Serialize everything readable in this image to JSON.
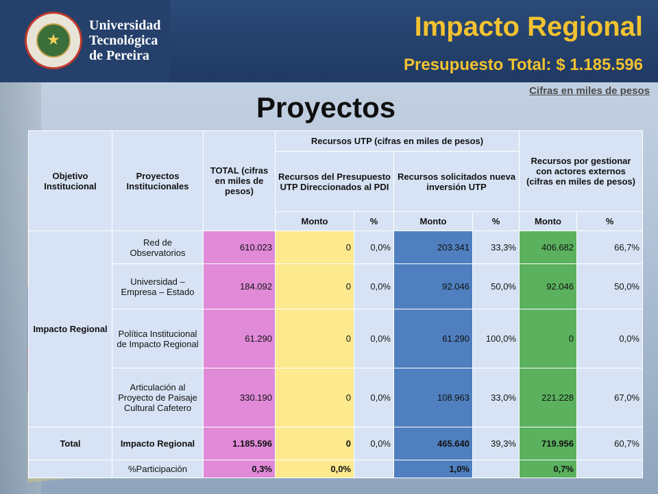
{
  "header": {
    "university_lines": [
      "Universidad",
      "Tecnológica",
      "de Pereira"
    ],
    "title": "Impacto Regional",
    "subtitle": "Presupuesto Total: $ 1.185.596",
    "note": "Cifras en miles de pesos"
  },
  "heading": "Proyectos",
  "table": {
    "headers": {
      "objetivo": "Objetivo Institucional",
      "proyectos": "Proyectos Institucionales",
      "total": "TOTAL (cifras en miles de pesos)",
      "recursos_utp": "Recursos UTP (cifras en miles de pesos)",
      "presupuesto_pdi": "Recursos del Presupuesto UTP Direccionados al PDI",
      "nueva_inversion": "Recursos solicitados nueva inversión UTP",
      "externos": "Recursos por gestionar con actores externos (cifras en miles de pesos)",
      "monto": "Monto",
      "pct": "%"
    },
    "objetivo_value": "Impacto Regional",
    "rows": [
      {
        "proyecto": "Red de Observatorios",
        "total": "610.023",
        "pdi_monto": "0",
        "pdi_pct": "0,0%",
        "nueva_monto": "203.341",
        "nueva_pct": "33,3%",
        "ext_monto": "406.682",
        "ext_pct": "66,7%"
      },
      {
        "proyecto": "Universidad – Empresa – Estado",
        "total": "184.092",
        "pdi_monto": "0",
        "pdi_pct": "0,0%",
        "nueva_monto": "92.046",
        "nueva_pct": "50,0%",
        "ext_monto": "92.046",
        "ext_pct": "50,0%"
      },
      {
        "proyecto": "Política Institucional de Impacto Regional",
        "total": "61.290",
        "pdi_monto": "0",
        "pdi_pct": "0,0%",
        "nueva_monto": "61.290",
        "nueva_pct": "100,0%",
        "ext_monto": "0",
        "ext_pct": "0,0%"
      },
      {
        "proyecto": "Articulación al Proyecto de Paisaje Cultural Cafetero",
        "total": "330.190",
        "pdi_monto": "0",
        "pdi_pct": "0,0%",
        "nueva_monto": "108.963",
        "nueva_pct": "33,0%",
        "ext_monto": "221.228",
        "ext_pct": "67,0%"
      }
    ],
    "total_row": {
      "label": "Total",
      "proyecto": "Impacto Regional",
      "total": "1.185.596",
      "pdi_monto": "0",
      "pdi_pct": "0,0%",
      "nueva_monto": "465.640",
      "nueva_pct": "39,3%",
      "ext_monto": "719.956",
      "ext_pct": "60,7%"
    },
    "participacion_row": {
      "label": "%Participación",
      "total": "0,3%",
      "pdi": "0,0%",
      "nueva": "1,0%",
      "ext": "0,7%"
    }
  },
  "colors": {
    "header_bar": "#1f3a63",
    "title_gold": "#f2c230",
    "total_pink": "#e08ad8",
    "pdi_yellow": "#fde98e",
    "nueva_blue": "#4f7fbf",
    "externos_green": "#5bb15e",
    "label_pale": "#d7e3f4"
  }
}
